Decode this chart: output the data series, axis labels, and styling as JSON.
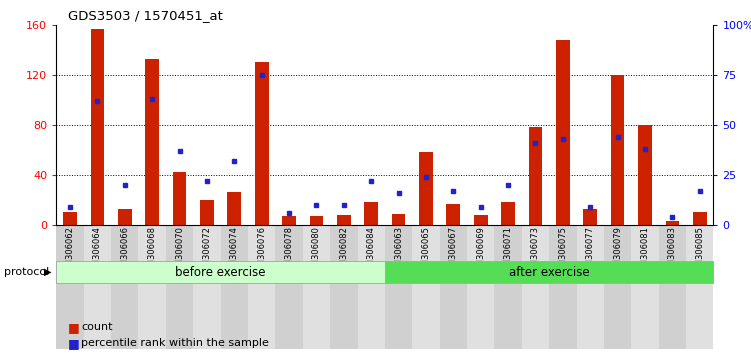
{
  "title": "GDS3503 / 1570451_at",
  "samples": [
    "GSM306062",
    "GSM306064",
    "GSM306066",
    "GSM306068",
    "GSM306070",
    "GSM306072",
    "GSM306074",
    "GSM306076",
    "GSM306078",
    "GSM306080",
    "GSM306082",
    "GSM306084",
    "GSM306063",
    "GSM306065",
    "GSM306067",
    "GSM306069",
    "GSM306071",
    "GSM306073",
    "GSM306075",
    "GSM306077",
    "GSM306079",
    "GSM306081",
    "GSM306083",
    "GSM306085"
  ],
  "counts": [
    10,
    157,
    13,
    133,
    42,
    20,
    26,
    130,
    7,
    7,
    8,
    18,
    9,
    58,
    17,
    8,
    18,
    78,
    148,
    13,
    120,
    80,
    3,
    10
  ],
  "percentiles": [
    9,
    62,
    20,
    63,
    37,
    22,
    32,
    75,
    6,
    10,
    10,
    22,
    16,
    24,
    17,
    9,
    20,
    41,
    43,
    9,
    44,
    38,
    4,
    17
  ],
  "before_count": 12,
  "after_count": 12,
  "protocol_before": "before exercise",
  "protocol_after": "after exercise",
  "bar_color": "#cc2200",
  "dot_color": "#2222cc",
  "left_ylim": [
    0,
    160
  ],
  "left_yticks": [
    0,
    40,
    80,
    120,
    160
  ],
  "right_ylim": [
    0,
    100
  ],
  "right_yticks": [
    0,
    25,
    50,
    75,
    100
  ],
  "right_yticklabels": [
    "0",
    "25",
    "50",
    "75",
    "100%"
  ],
  "background_color": "#ffffff",
  "plot_bg": "#ffffff",
  "before_color": "#ccffcc",
  "after_color": "#55dd55",
  "protocol_label": "protocol",
  "legend_count_label": "count",
  "legend_pct_label": "percentile rank within the sample",
  "col_bg_even": "#d0d0d0",
  "col_bg_odd": "#e0e0e0"
}
